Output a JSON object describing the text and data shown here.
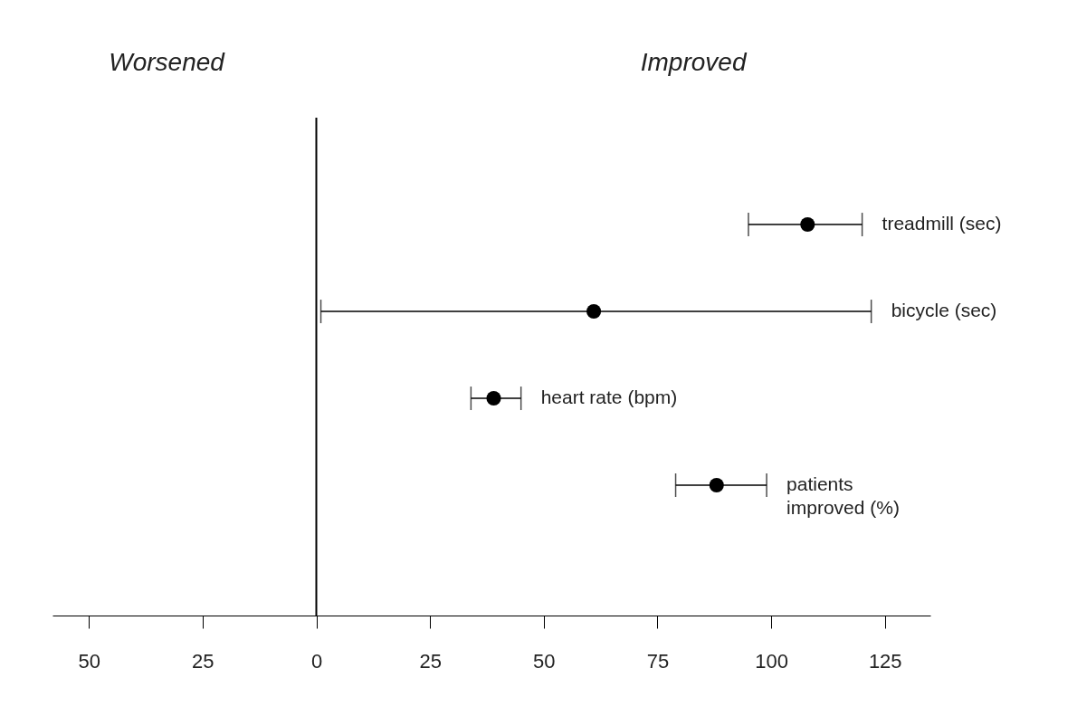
{
  "chart_data": {
    "type": "scatter",
    "orientation": "horizontal",
    "marker": "circle",
    "annotations": [
      "Worsened",
      "Improved"
    ],
    "categories": [
      "treadmill (sec)",
      "bicycle (sec)",
      "heart rate (bpm)",
      "patients\nimproved (%)"
    ],
    "values": [
      108,
      61,
      39,
      88
    ],
    "errors": [
      [
        95,
        120
      ],
      [
        1,
        122
      ],
      [
        34,
        45
      ],
      [
        79,
        99
      ]
    ],
    "color": "#000000",
    "xlim": [
      -58,
      135
    ],
    "xticks": [
      {
        "value": -50,
        "label": "50"
      },
      {
        "value": -25,
        "label": "25"
      },
      0,
      25,
      50,
      75,
      100,
      125
    ],
    "ref_lines": [
      {
        "axis": "x",
        "value": 0,
        "color": "#000000"
      }
    ]
  }
}
